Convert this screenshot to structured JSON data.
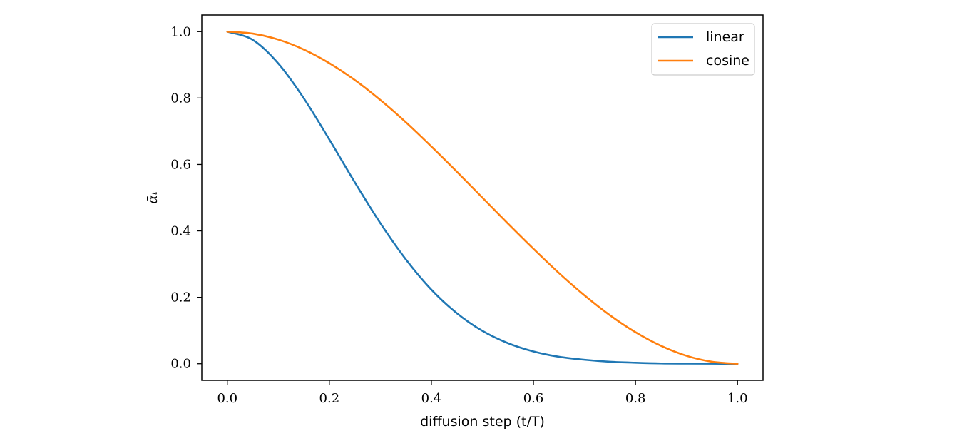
{
  "chart_data": {
    "type": "line",
    "xlabel": "diffusion step (t/T)",
    "ylabel": "ᾱₜ",
    "xlim": [
      -0.05,
      1.05
    ],
    "ylim": [
      -0.05,
      1.05
    ],
    "xticks": [
      0.0,
      0.2,
      0.4,
      0.6,
      0.8,
      1.0
    ],
    "yticks": [
      0.0,
      0.2,
      0.4,
      0.6,
      0.8,
      1.0
    ],
    "xtick_labels": [
      "0.0",
      "0.2",
      "0.4",
      "0.6",
      "0.8",
      "1.0"
    ],
    "ytick_labels": [
      "0.0",
      "0.2",
      "0.4",
      "0.6",
      "0.8",
      "1.0"
    ],
    "grid": false,
    "legend_position": "top-right",
    "x": [
      0.0,
      0.05,
      0.1,
      0.15,
      0.2,
      0.25,
      0.3,
      0.35,
      0.4,
      0.45,
      0.5,
      0.55,
      0.6,
      0.65,
      0.7,
      0.75,
      0.8,
      0.85,
      0.9,
      0.95,
      1.0
    ],
    "series": [
      {
        "name": "linear",
        "color": "#1f77b4",
        "values": [
          1.0,
          0.975,
          0.904,
          0.799,
          0.675,
          0.546,
          0.423,
          0.314,
          0.223,
          0.152,
          0.099,
          0.062,
          0.037,
          0.021,
          0.012,
          0.006,
          0.003,
          0.001,
          0.0005,
          0.0002,
          0.0
        ]
      },
      {
        "name": "cosine",
        "color": "#ff7f0e",
        "values": [
          1.0,
          0.994,
          0.976,
          0.946,
          0.905,
          0.854,
          0.794,
          0.727,
          0.654,
          0.578,
          0.5,
          0.422,
          0.346,
          0.273,
          0.206,
          0.146,
          0.095,
          0.054,
          0.024,
          0.006,
          0.0
        ]
      }
    ]
  }
}
